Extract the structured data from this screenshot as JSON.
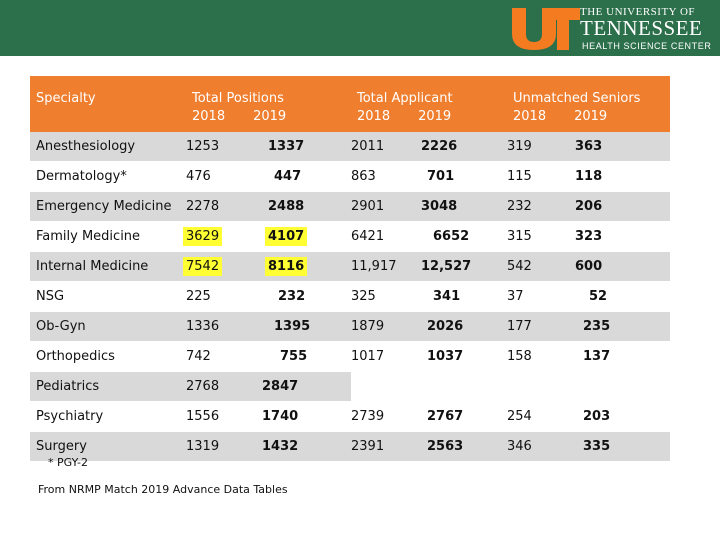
{
  "brand": {
    "the_university_of": "THE UNIVERSITY OF",
    "tennessee": "TENNESSEE",
    "health_science_center": "HEALTH SCIENCE CENTER",
    "banner_color": "#2c6f4b",
    "logo_color": "#f47b20"
  },
  "table": {
    "header_color": "#ef7e2f",
    "headers": {
      "specialty": "Specialty",
      "total_positions": "Total Positions",
      "total_applicant": "Total Applicant",
      "unmatched_seniors": "Unmatched Seniors",
      "year_2018": "2018",
      "year_2019": "2019"
    },
    "rows": [
      {
        "specialty": "Anesthesiology",
        "pos18": "1253",
        "pos19": "1337",
        "app18": "2011",
        "app19": "2226",
        "un18": "319",
        "un19": "363"
      },
      {
        "specialty": "Dermatology*",
        "pos18": "476",
        "pos19": "447",
        "app18": "863",
        "app19": "701",
        "un18": "115",
        "un19": "118"
      },
      {
        "specialty": "Emergency Medicine",
        "pos18": "2278",
        "pos19": "2488",
        "app18": "2901",
        "app19": "3048",
        "un18": "232",
        "un19": "206"
      },
      {
        "specialty": "Family Medicine",
        "pos18": "3629",
        "pos19": "4107",
        "app18": "6421",
        "app19": "6652",
        "un18": "315",
        "un19": "323"
      },
      {
        "specialty": "Internal Medicine",
        "pos18": "7542",
        "pos19": "8116",
        "app18": "11,917",
        "app19": "12,527",
        "un18": "542",
        "un19": "600"
      },
      {
        "specialty": "NSG",
        "pos18": "225",
        "pos19": "232",
        "app18": "325",
        "app19": "341",
        "un18": "37",
        "un19": "52"
      },
      {
        "specialty": "Ob-Gyn",
        "pos18": "1336",
        "pos19": "1395",
        "app18": "1879",
        "app19": "2026",
        "un18": "177",
        "un19": "235"
      },
      {
        "specialty": "Orthopedics",
        "pos18": "742",
        "pos19": "755",
        "app18": "1017",
        "app19": "1037",
        "un18": "158",
        "un19": "137"
      },
      {
        "specialty": "Pediatrics",
        "pos18": "2768",
        "pos19": "2847",
        "app18": "",
        "app19": "",
        "un18": "",
        "un19": ""
      },
      {
        "specialty": "Psychiatry",
        "pos18": "1556",
        "pos19": "1740",
        "app18": "2739",
        "app19": "2767",
        "un18": "254",
        "un19": "203"
      },
      {
        "specialty": "Surgery",
        "pos18": "1319",
        "pos19": "1432",
        "app18": "2391",
        "app19": "2563",
        "un18": "346",
        "un19": "335"
      }
    ]
  },
  "footnote": "* PGY-2",
  "source": "From NRMP Match 2019 Advance Data Tables"
}
